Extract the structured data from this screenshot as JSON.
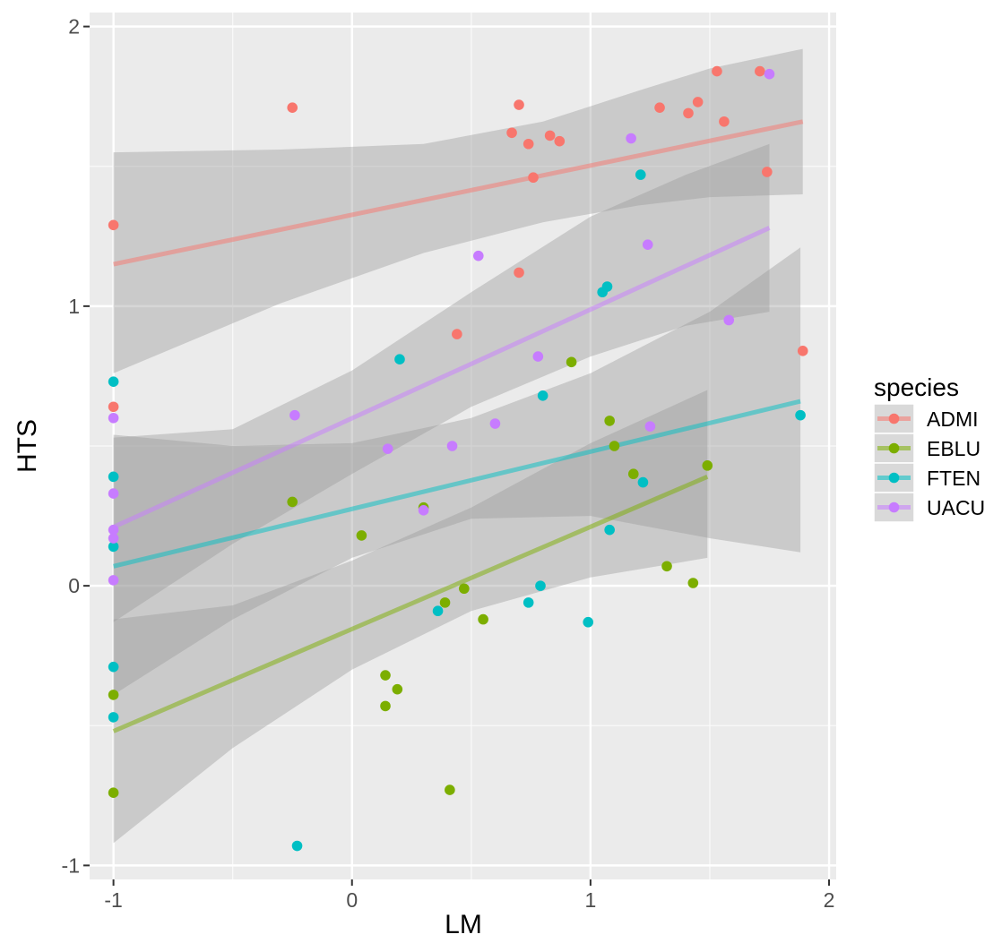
{
  "chart_data": {
    "type": "scatter",
    "title": "",
    "xlabel": "LM",
    "ylabel": "HTS",
    "xlim": [
      -1.1,
      2.03
    ],
    "ylim": [
      -1.05,
      2.05
    ],
    "x_ticks": [
      -1,
      0,
      1,
      2
    ],
    "x_tick_labels": [
      "-1",
      "0",
      "1",
      "2"
    ],
    "y_ticks": [
      -1,
      0,
      1,
      2
    ],
    "y_tick_labels": [
      "-1",
      "0",
      "1",
      "2"
    ],
    "grid": true,
    "legend_title": "species",
    "legend_position": "right",
    "series": [
      {
        "name": "ADMI",
        "color": "#F8766D",
        "points": [
          [
            -1.0,
            1.29
          ],
          [
            -1.0,
            0.64
          ],
          [
            -0.25,
            1.71
          ],
          [
            0.44,
            0.9
          ],
          [
            0.67,
            1.62
          ],
          [
            0.7,
            1.72
          ],
          [
            0.7,
            1.12
          ],
          [
            0.74,
            1.58
          ],
          [
            0.76,
            1.46
          ],
          [
            0.83,
            1.61
          ],
          [
            0.87,
            1.59
          ],
          [
            1.29,
            1.71
          ],
          [
            1.41,
            1.69
          ],
          [
            1.45,
            1.73
          ],
          [
            1.53,
            1.84
          ],
          [
            1.56,
            1.66
          ],
          [
            1.71,
            1.84
          ],
          [
            1.74,
            1.48
          ],
          [
            1.89,
            0.84
          ]
        ],
        "fit": {
          "x": [
            -1.0,
            1.89
          ],
          "y": [
            1.15,
            1.66
          ]
        },
        "ci_lower": [
          [
            -1.0,
            0.76
          ],
          [
            -0.3,
            1.01
          ],
          [
            0.3,
            1.19
          ],
          [
            0.8,
            1.3
          ],
          [
            1.2,
            1.36
          ],
          [
            1.5,
            1.39
          ],
          [
            1.89,
            1.4
          ]
        ],
        "ci_upper": [
          [
            -1.0,
            1.55
          ],
          [
            -0.3,
            1.56
          ],
          [
            0.3,
            1.58
          ],
          [
            0.8,
            1.66
          ],
          [
            1.2,
            1.77
          ],
          [
            1.5,
            1.85
          ],
          [
            1.89,
            1.92
          ]
        ]
      },
      {
        "name": "EBLU",
        "color": "#7CAE00",
        "points": [
          [
            -1.0,
            -0.39
          ],
          [
            -1.0,
            -0.74
          ],
          [
            -0.25,
            0.3
          ],
          [
            0.04,
            0.18
          ],
          [
            0.14,
            -0.32
          ],
          [
            0.14,
            -0.43
          ],
          [
            0.19,
            -0.37
          ],
          [
            0.3,
            0.28
          ],
          [
            0.39,
            -0.06
          ],
          [
            0.41,
            -0.73
          ],
          [
            0.47,
            -0.01
          ],
          [
            0.55,
            -0.12
          ],
          [
            0.92,
            0.8
          ],
          [
            1.08,
            0.59
          ],
          [
            1.1,
            0.5
          ],
          [
            1.18,
            0.4
          ],
          [
            1.32,
            0.07
          ],
          [
            1.43,
            0.01
          ],
          [
            1.49,
            0.43
          ]
        ],
        "fit": {
          "x": [
            -1.0,
            1.49
          ],
          "y": [
            -0.52,
            0.39
          ]
        },
        "ci_lower": [
          [
            -1.0,
            -0.92
          ],
          [
            -0.5,
            -0.58
          ],
          [
            0.0,
            -0.3
          ],
          [
            0.5,
            -0.09
          ],
          [
            1.0,
            0.03
          ],
          [
            1.49,
            0.1
          ]
        ],
        "ci_upper": [
          [
            -1.0,
            -0.12
          ],
          [
            -0.5,
            -0.07
          ],
          [
            0.0,
            0.09
          ],
          [
            0.5,
            0.28
          ],
          [
            1.0,
            0.51
          ],
          [
            1.49,
            0.7
          ]
        ]
      },
      {
        "name": "FTEN",
        "color": "#00BFC4",
        "points": [
          [
            -1.0,
            0.73
          ],
          [
            -1.0,
            0.39
          ],
          [
            -1.0,
            0.14
          ],
          [
            -1.0,
            -0.29
          ],
          [
            -1.0,
            -0.47
          ],
          [
            -0.23,
            -0.93
          ],
          [
            0.2,
            0.81
          ],
          [
            0.36,
            -0.09
          ],
          [
            0.74,
            -0.06
          ],
          [
            0.79,
            0.0
          ],
          [
            0.8,
            0.68
          ],
          [
            0.99,
            -0.13
          ],
          [
            1.05,
            1.05
          ],
          [
            1.07,
            1.07
          ],
          [
            1.08,
            0.2
          ],
          [
            1.21,
            1.47
          ],
          [
            1.22,
            0.37
          ],
          [
            1.88,
            0.61
          ]
        ],
        "fit": {
          "x": [
            -1.0,
            1.88
          ],
          "y": [
            0.07,
            0.66
          ]
        },
        "ci_lower": [
          [
            -1.0,
            -0.39
          ],
          [
            -0.5,
            -0.12
          ],
          [
            0.0,
            0.1
          ],
          [
            0.5,
            0.24
          ],
          [
            1.0,
            0.25
          ],
          [
            1.5,
            0.17
          ],
          [
            1.88,
            0.12
          ]
        ],
        "ci_upper": [
          [
            -1.0,
            0.54
          ],
          [
            -0.5,
            0.5
          ],
          [
            0.0,
            0.51
          ],
          [
            0.5,
            0.6
          ],
          [
            1.0,
            0.76
          ],
          [
            1.5,
            0.98
          ],
          [
            1.88,
            1.21
          ]
        ]
      },
      {
        "name": "UACU",
        "color": "#C77CFF",
        "points": [
          [
            -1.0,
            0.6
          ],
          [
            -1.0,
            0.33
          ],
          [
            -1.0,
            0.2
          ],
          [
            -1.0,
            0.17
          ],
          [
            -1.0,
            0.02
          ],
          [
            -0.24,
            0.61
          ],
          [
            0.15,
            0.49
          ],
          [
            0.3,
            0.27
          ],
          [
            0.42,
            0.5
          ],
          [
            0.53,
            1.18
          ],
          [
            0.6,
            0.58
          ],
          [
            0.78,
            0.82
          ],
          [
            1.17,
            1.6
          ],
          [
            1.24,
            1.22
          ],
          [
            1.25,
            0.57
          ],
          [
            1.58,
            0.95
          ],
          [
            1.75,
            1.83
          ]
        ],
        "fit": {
          "x": [
            -1.0,
            1.75
          ],
          "y": [
            0.21,
            1.28
          ]
        },
        "ci_lower": [
          [
            -1.0,
            -0.13
          ],
          [
            -0.5,
            0.15
          ],
          [
            0.0,
            0.4
          ],
          [
            0.5,
            0.64
          ],
          [
            1.0,
            0.82
          ],
          [
            1.4,
            0.93
          ],
          [
            1.75,
            0.98
          ]
        ],
        "ci_upper": [
          [
            -1.0,
            0.53
          ],
          [
            -0.5,
            0.56
          ],
          [
            0.0,
            0.77
          ],
          [
            0.5,
            1.05
          ],
          [
            1.0,
            1.32
          ],
          [
            1.4,
            1.47
          ],
          [
            1.75,
            1.58
          ]
        ]
      }
    ]
  }
}
